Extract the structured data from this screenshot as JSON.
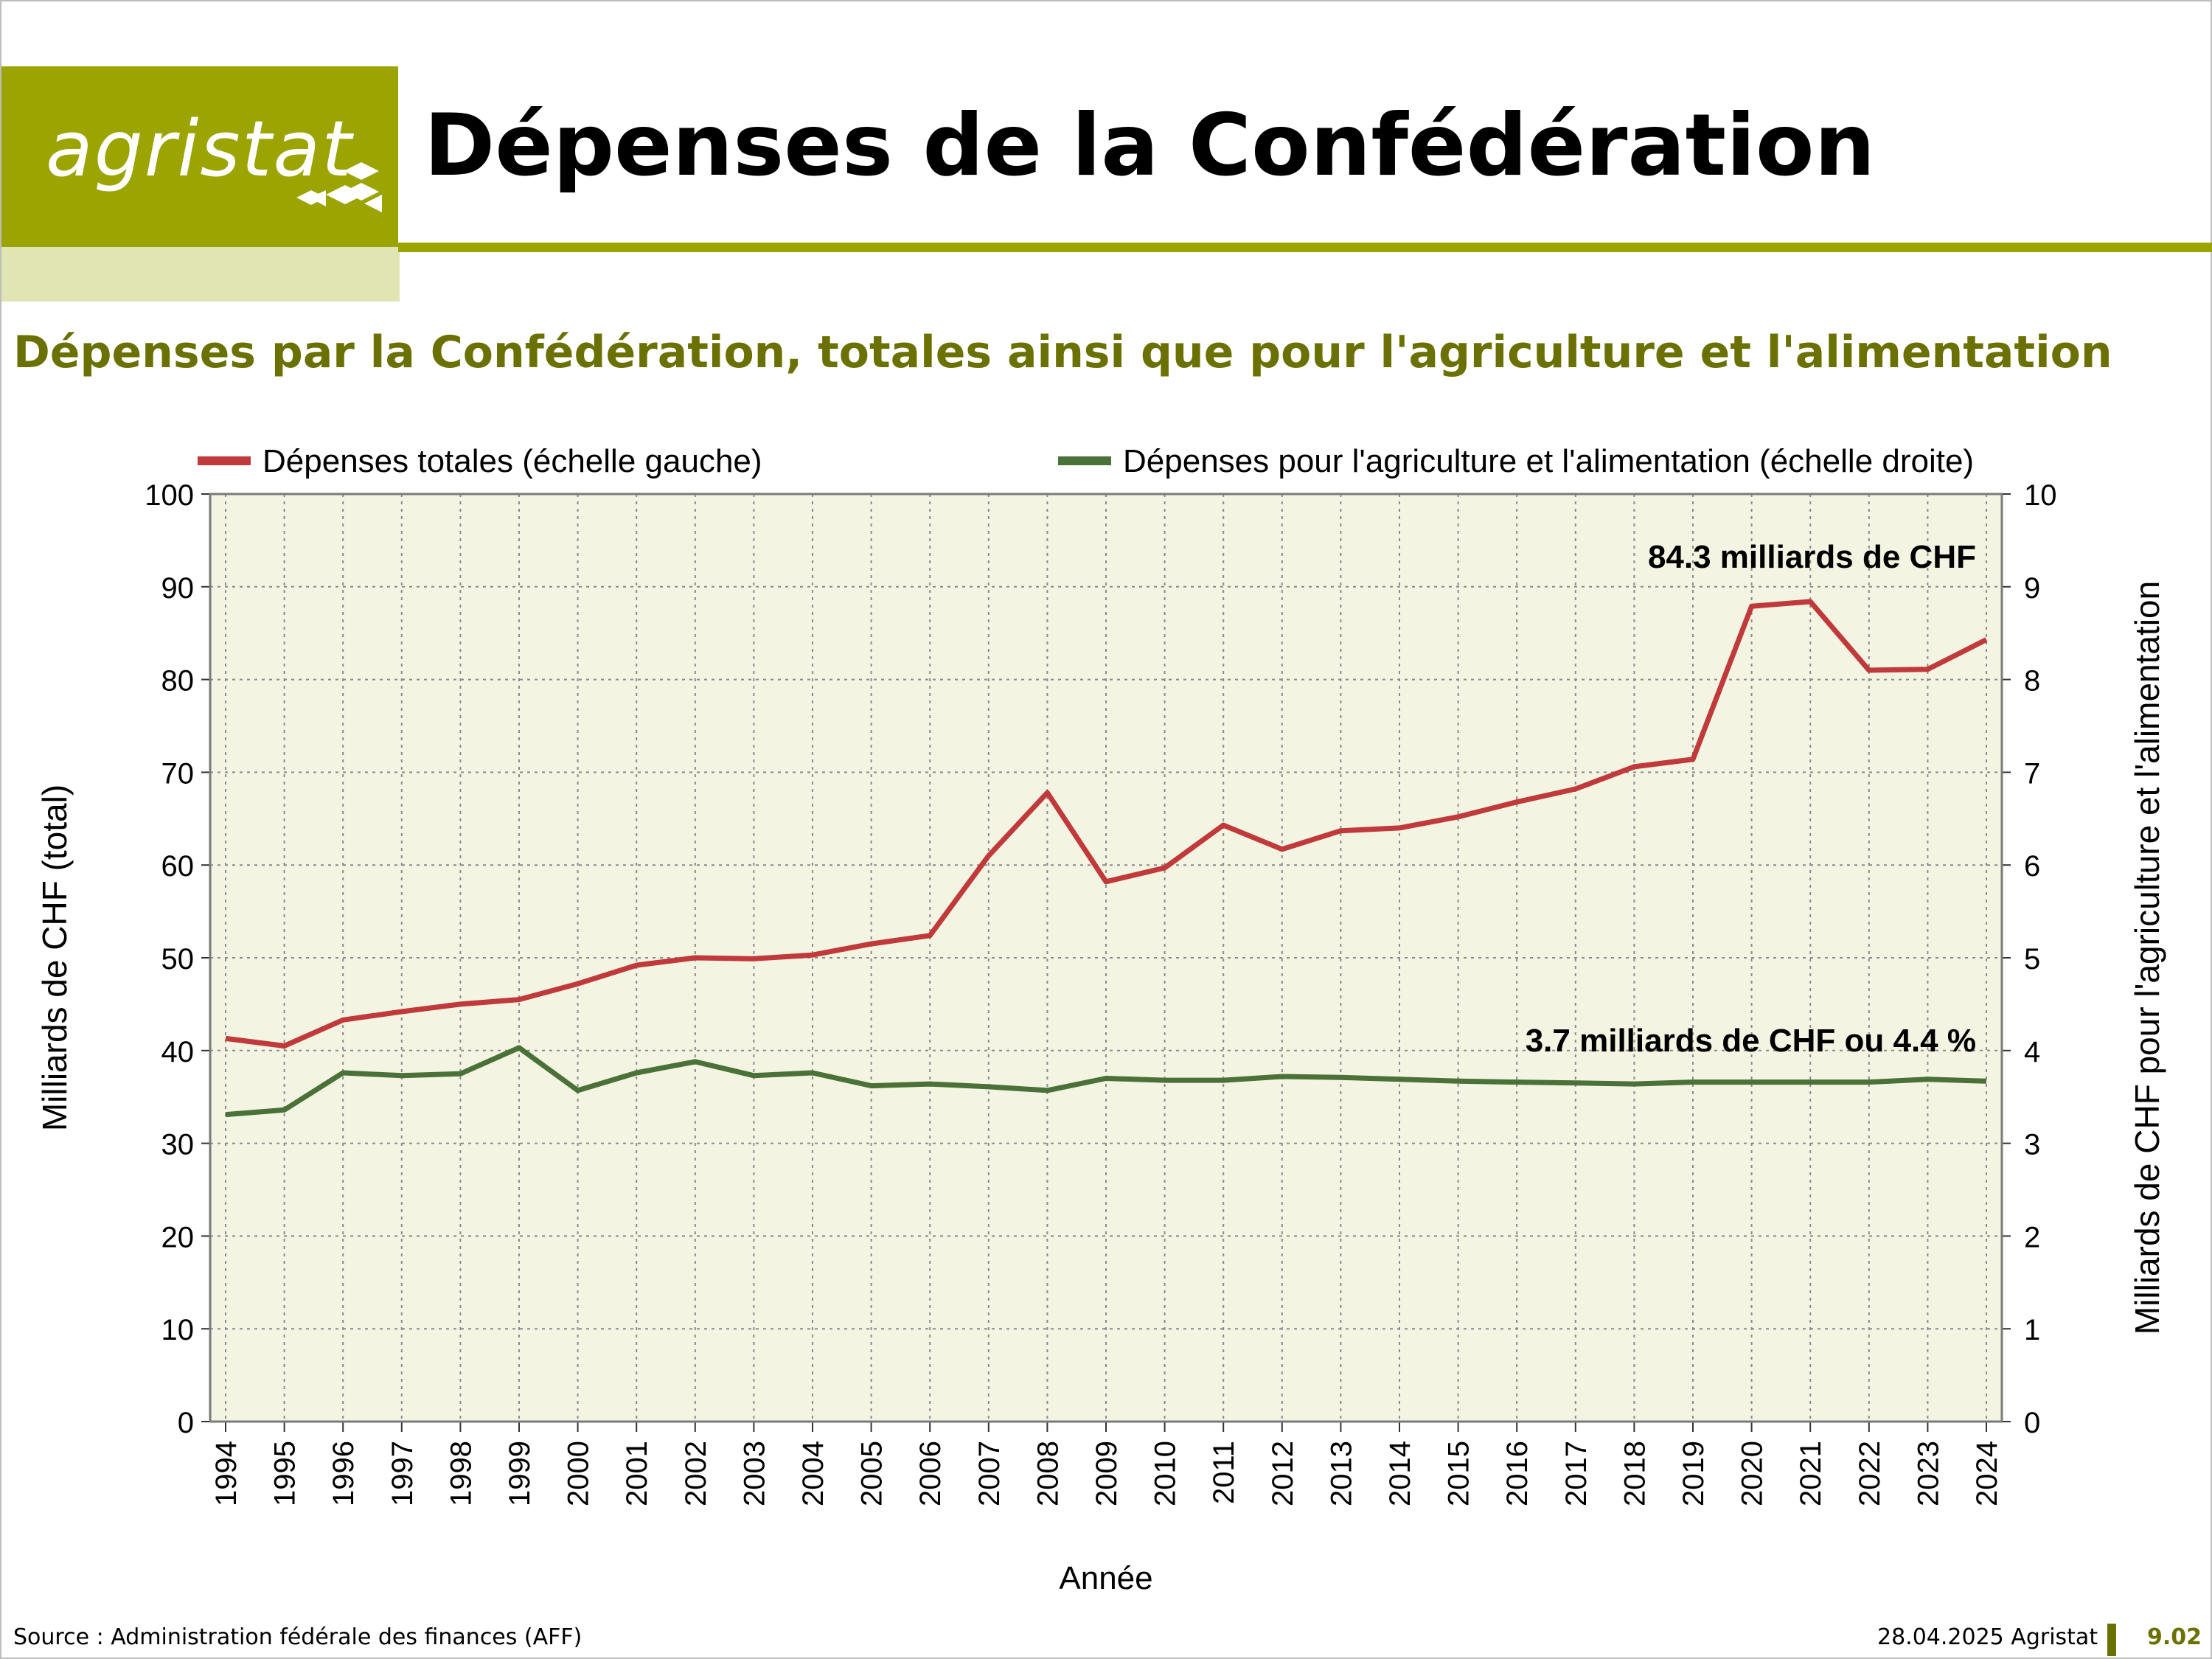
{
  "header": {
    "logo_text": "agristat",
    "title": "Dépenses de la Confédération"
  },
  "chart_data": {
    "type": "line",
    "title": "Dépenses par la Confédération, totales ainsi que pour l'agriculture et l'alimentation",
    "xlabel": "Année",
    "ylabel": "Milliards de CHF (total)",
    "y2label": "Milliards de CHF pour l'agriculture et l'alimentation",
    "ylim": [
      0,
      100
    ],
    "y2lim": [
      0,
      10
    ],
    "yticks": [
      0,
      10,
      20,
      30,
      40,
      50,
      60,
      70,
      80,
      90,
      100
    ],
    "y2ticks": [
      0,
      1,
      2,
      3,
      4,
      5,
      6,
      7,
      8,
      9,
      10
    ],
    "grid": true,
    "legend_position": "top",
    "categories": [
      "1994",
      "1995",
      "1996",
      "1997",
      "1998",
      "1999",
      "2000",
      "2001",
      "2002",
      "2003",
      "2004",
      "2005",
      "2006",
      "2007",
      "2008",
      "2009",
      "2010",
      "2011",
      "2012",
      "2013",
      "2014",
      "2015",
      "2016",
      "2017",
      "2018",
      "2019",
      "2020",
      "2021",
      "2022",
      "2023",
      "2024"
    ],
    "series": [
      {
        "name": "Dépenses totales (échelle gauche)",
        "axis": "left",
        "color": "#c0393b",
        "values": [
          41.3,
          40.5,
          43.3,
          44.2,
          45.0,
          45.5,
          47.2,
          49.2,
          50.0,
          49.9,
          50.3,
          51.5,
          52.4,
          61.0,
          67.8,
          58.2,
          59.7,
          64.3,
          61.7,
          63.7,
          64.0,
          65.2,
          66.8,
          68.2,
          70.6,
          71.4,
          87.9,
          88.4,
          81.0,
          81.1,
          84.3
        ]
      },
      {
        "name": "Dépenses pour l'agriculture et l'alimentation (échelle droite)",
        "axis": "right",
        "color": "#4a7137",
        "values": [
          3.31,
          3.36,
          3.76,
          3.73,
          3.75,
          4.03,
          3.57,
          3.76,
          3.88,
          3.73,
          3.76,
          3.62,
          3.64,
          3.61,
          3.57,
          3.7,
          3.68,
          3.68,
          3.72,
          3.71,
          3.69,
          3.67,
          3.66,
          3.65,
          3.64,
          3.66,
          3.66,
          3.66,
          3.66,
          3.69,
          3.67
        ]
      }
    ],
    "annotations": [
      {
        "text": "84.3 milliards de CHF"
      },
      {
        "text": "3.7 milliards de CHF ou 4.4 %"
      }
    ],
    "colors": {
      "plot_background": "#f3f4e2",
      "grid": "#8a8a8a",
      "axis": "#333333"
    }
  },
  "footer": {
    "source": "Source : Administration fédérale des finances (AFF)",
    "date": "28.04.2025 Agristat",
    "page": "9.02"
  }
}
